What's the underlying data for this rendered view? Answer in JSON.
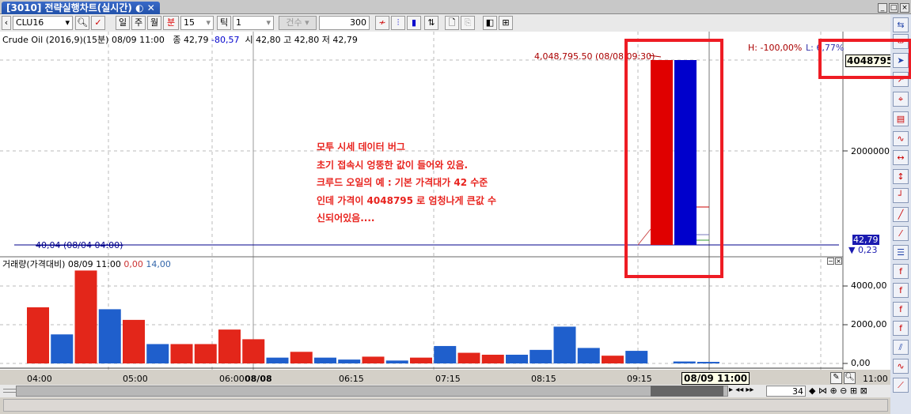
{
  "window": {
    "tab_title": "[3010] 전략실행차트(실시간)",
    "tab_icon": "link-icon",
    "minimize": "_",
    "maximize": "□",
    "close": "×"
  },
  "toolbar": {
    "symbol": "CLU16",
    "period_day": "일",
    "period_week": "주",
    "period_month": "월",
    "period_minute": "분",
    "minute_value": "15",
    "tick_label": "틱",
    "tick_value": "1",
    "count_label": "건수",
    "count_value": "300"
  },
  "price_pane": {
    "info": {
      "name": "Crude Oil (2016,9)(15분) 08/09 11:00",
      "close_label": "종",
      "close": "42,79",
      "change": "-80,57",
      "open_label": "시",
      "open": "42,80",
      "high_label": "고",
      "high": "42,80",
      "low_label": "저",
      "low": "42,79"
    },
    "high_marker": "4,048,795.50 (08/08 09:30)",
    "low_marker": "40,04 (08/04 04:00)",
    "hl_high": "H: -100,00%",
    "hl_low": "L: 6,77%",
    "current_price_box": "4048795",
    "y_tick": "2000000,0",
    "last_price": "42,79",
    "last_change": "▼ 0,23",
    "annotation": [
      "모투 시세 데이터 버그",
      "초기 접속시 엉뚱한 값이 들어와 있음.",
      "크루드 오일의 예 : 기본 가격대가 42 수준",
      "인데 가격이 4048795 로 엄청나게 큰값 수",
      "신되어있음...."
    ],
    "colors": {
      "up": "#e00000",
      "down": "#0000cc",
      "highlight": "#ee1c24"
    }
  },
  "volume_pane": {
    "info": {
      "name": "거래량(가격대비) 08/09 11:00",
      "v1": "0,00",
      "v2": "14,00"
    },
    "y_ticks": [
      "4000,00",
      "2000,00",
      "0,00"
    ]
  },
  "chart_data": {
    "type": "bar",
    "ylim": [
      0,
      5000
    ],
    "values": [
      2900,
      1500,
      4800,
      2800,
      2250,
      1000,
      1000,
      1000,
      1750,
      1250,
      300,
      600,
      300,
      200,
      350,
      150,
      300,
      900,
      550,
      450,
      450,
      700,
      1900,
      800,
      400,
      650,
      null,
      100,
      80
    ],
    "colors": [
      "up",
      "down",
      "up",
      "down",
      "up",
      "down",
      "up",
      "up",
      "up",
      "up",
      "down",
      "up",
      "down",
      "down",
      "up",
      "down",
      "up",
      "down",
      "up",
      "up",
      "down",
      "down",
      "down",
      "down",
      "up",
      "down",
      null,
      "down",
      "down"
    ]
  },
  "x_axis": {
    "labels": [
      "04:00",
      "05:00",
      "06:00",
      "08/08",
      "06:15",
      "07:15",
      "08:15",
      "09:15"
    ],
    "cursor_label": "08/09 11:00",
    "right_label": "11:00"
  },
  "scroll": {
    "visible_count": "34"
  }
}
